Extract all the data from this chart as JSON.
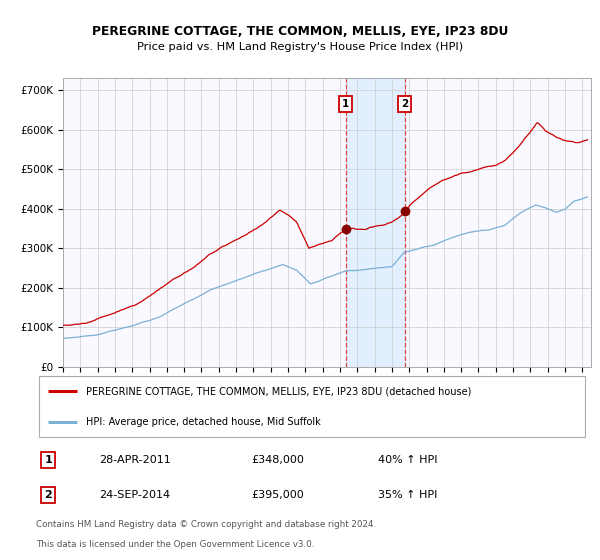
{
  "title1": "PEREGRINE COTTAGE, THE COMMON, MELLIS, EYE, IP23 8DU",
  "title2": "Price paid vs. HM Land Registry's House Price Index (HPI)",
  "ylabel_ticks": [
    "£0",
    "£100K",
    "£200K",
    "£300K",
    "£400K",
    "£500K",
    "£600K",
    "£700K"
  ],
  "ytick_vals": [
    0,
    100000,
    200000,
    300000,
    400000,
    500000,
    600000,
    700000
  ],
  "ylim": [
    0,
    730000
  ],
  "sale1_date": "28-APR-2011",
  "sale1_price": 348000,
  "sale1_label": "1",
  "sale1_pct": "40% ↑ HPI",
  "sale1_x": 2011.32,
  "sale2_date": "24-SEP-2014",
  "sale2_price": 395000,
  "sale2_label": "2",
  "sale2_pct": "35% ↑ HPI",
  "sale2_x": 2014.73,
  "legend_property": "PEREGRINE COTTAGE, THE COMMON, MELLIS, EYE, IP23 8DU (detached house)",
  "legend_hpi": "HPI: Average price, detached house, Mid Suffolk",
  "footnote1": "Contains HM Land Registry data © Crown copyright and database right 2024.",
  "footnote2": "This data is licensed under the Open Government Licence v3.0.",
  "line_color_property": "#cc0000",
  "line_color_hpi": "#7ab0d4",
  "shade_color": "#ddeeff",
  "vline_color": "#dd3333",
  "dot_color": "#880000",
  "grid_color": "#cccccc",
  "bg_color": "#ffffff",
  "chart_bg": "#f9f9ff",
  "x_min": 1995.0,
  "x_max": 2025.5
}
